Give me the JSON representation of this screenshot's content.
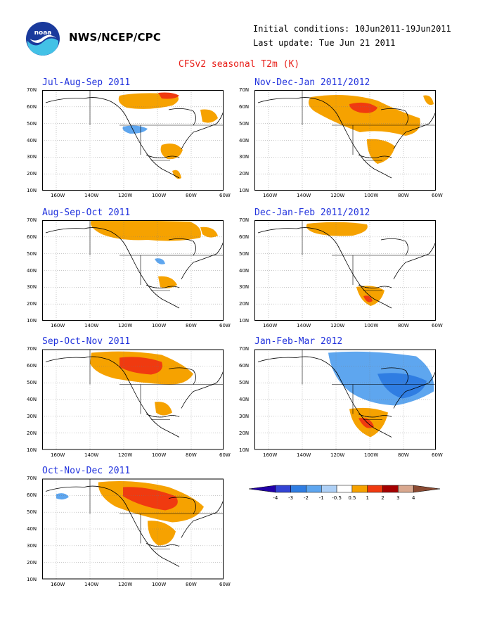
{
  "header": {
    "agency": "NWS/NCEP/CPC",
    "initial_conditions": "Initial conditions: 10Jun2011-19Jun2011",
    "last_update": "Last update: Tue Jun 21 2011",
    "title": "CFSv2 seasonal T2m (K)",
    "logo_icon": "noaa-logo-icon"
  },
  "axes": {
    "lat_labels": [
      "70N",
      "60N",
      "50N",
      "40N",
      "30N",
      "20N",
      "10N"
    ],
    "lon_labels": [
      "160W",
      "140W",
      "120W",
      "100W",
      "80W",
      "60W"
    ]
  },
  "panels": [
    {
      "title": "Jul-Aug-Sep 2011",
      "anomaly": [
        {
          "level": 1,
          "desc": "northern Canada / high latitudes"
        },
        {
          "level": 2,
          "desc": "north-central Canada small core"
        },
        {
          "level": -1,
          "desc": "northern Rockies / Montana"
        },
        {
          "level": 1,
          "desc": "south-central US"
        },
        {
          "level": 1,
          "desc": "Hudson Bay / eastern Canada"
        }
      ]
    },
    {
      "title": "Nov-Dec-Jan 2011/2012",
      "anomaly": [
        {
          "level": 1,
          "desc": "most of Canada"
        },
        {
          "level": 2,
          "desc": "central Canada core"
        },
        {
          "level": 1,
          "desc": "central / south-central US"
        }
      ]
    },
    {
      "title": "Aug-Sep-Oct 2011",
      "anomaly": [
        {
          "level": 1,
          "desc": "northern Canada"
        },
        {
          "level": 1,
          "desc": "Gulf coast / Texas"
        }
      ]
    },
    {
      "title": "Dec-Jan-Feb 2011/2012",
      "anomaly": [
        {
          "level": 1,
          "desc": "northern Canada"
        },
        {
          "level": 1,
          "desc": "Texas / northern Mexico"
        }
      ]
    },
    {
      "title": "Sep-Oct-Nov 2011",
      "anomaly": [
        {
          "level": 1,
          "desc": "Canada broad"
        },
        {
          "level": 2,
          "desc": "central Canada core"
        },
        {
          "level": 1,
          "desc": "south-central US"
        }
      ]
    },
    {
      "title": "Jan-Feb-Mar 2012",
      "anomaly": [
        {
          "level": -1,
          "desc": "Canada / northern US broad"
        },
        {
          "level": -2,
          "desc": "eastern Canada / Great Lakes"
        },
        {
          "level": 1,
          "desc": "Texas / northern Mexico"
        },
        {
          "level": 2,
          "desc": "northern Mexico core"
        }
      ]
    },
    {
      "title": "Oct-Nov-Dec 2011",
      "anomaly": [
        {
          "level": 1,
          "desc": "Canada broad"
        },
        {
          "level": 2,
          "desc": "central Canada core"
        },
        {
          "level": 1,
          "desc": "central US"
        },
        {
          "level": -1,
          "desc": "Alaska small"
        }
      ]
    }
  ],
  "colorbar": {
    "labels": [
      "-4",
      "-3",
      "-2",
      "-1",
      "-0.5",
      "0.5",
      "1",
      "2",
      "3",
      "4"
    ],
    "colors": [
      "#2200a8",
      "#3344d4",
      "#2f7de2",
      "#5ea6ef",
      "#aed0f6",
      "#ffffff",
      "#f6a200",
      "#f03a10",
      "#a40000",
      "#d9a88f",
      "#8a4a32"
    ]
  },
  "legend_colors": {
    "warm1": "#f6a200",
    "warm2": "#f03a10",
    "cool1": "#5ea6ef",
    "cool2": "#2f7de2"
  }
}
